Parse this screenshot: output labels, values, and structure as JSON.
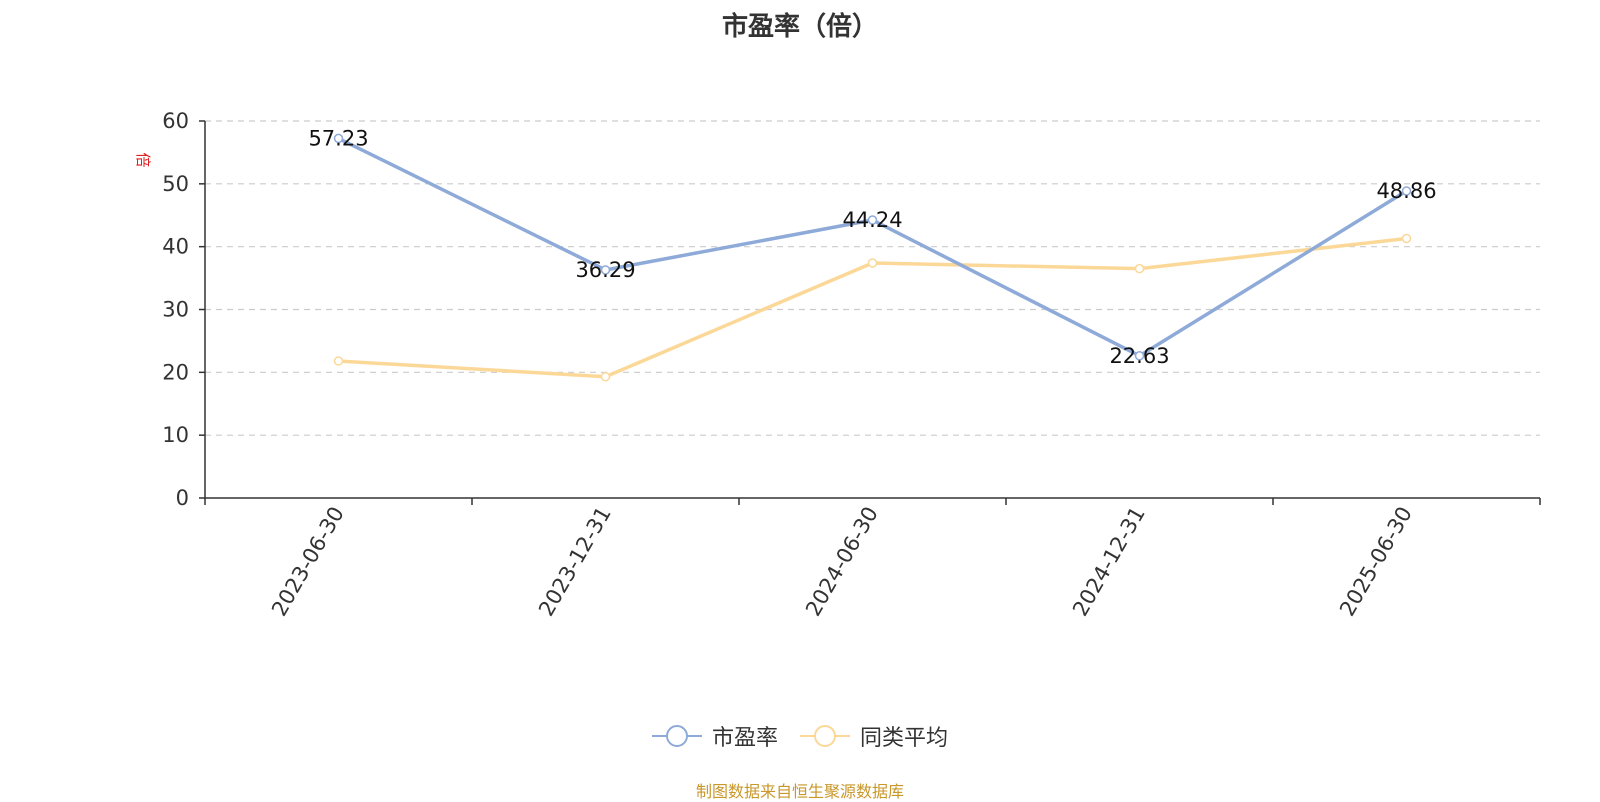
{
  "chart_data": {
    "type": "line",
    "title": "市盈率（倍）",
    "ylabel": "倍",
    "categories": [
      "2023-06-30",
      "2023-12-31",
      "2024-06-30",
      "2024-12-31",
      "2025-06-30"
    ],
    "ylim": [
      0,
      60
    ],
    "yticks": [
      0,
      10,
      20,
      30,
      40,
      50,
      60
    ],
    "grid": true,
    "legend_position": "bottom",
    "series": [
      {
        "name": "市盈率",
        "values": [
          57.23,
          36.29,
          44.24,
          22.63,
          48.86
        ],
        "color": "#8eaad8",
        "labels": [
          "57.23",
          "36.29",
          "44.24",
          "22.63",
          "48.86"
        ]
      },
      {
        "name": "同类平均",
        "values": [
          21.8,
          19.3,
          37.4,
          36.5,
          41.3
        ],
        "color": "#fbd898"
      }
    ]
  },
  "footer": {
    "source": "制图数据来自恒生聚源数据库"
  }
}
